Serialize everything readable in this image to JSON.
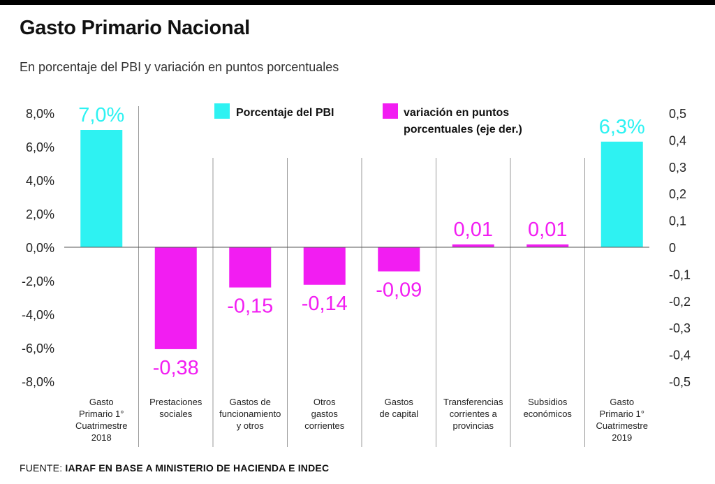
{
  "header": {
    "title": "Gasto Primario Nacional",
    "subtitle": "En porcentaje del PBI y variación en puntos porcentuales"
  },
  "footer": {
    "source_prefix": "FUENTE: ",
    "source_text": "IARAF EN BASE A MINISTERIO DE HACIENDA E INDEC"
  },
  "colors": {
    "pbi": "#2ef2f2",
    "variation": "#f21df2",
    "pbi_label": "#2ef2f2",
    "variation_label": "#f21df2"
  },
  "chart_data": {
    "type": "bar",
    "title": "Gasto Primario Nacional",
    "subtitle": "En porcentaje del PBI y variación en puntos porcentuales",
    "left_axis": {
      "range": [
        -8,
        8
      ],
      "ticks": [
        "8,0%",
        "6,0%",
        "4,0%",
        "2,0%",
        "0,0%",
        "-2,0%",
        "-4,0%",
        "-6,0%",
        "-8,0%"
      ]
    },
    "right_axis": {
      "range": [
        -0.5,
        0.5
      ],
      "ticks": [
        "0,5",
        "0,4",
        "0,3",
        "0,2",
        "0,1",
        "0",
        "-0,1",
        "-0,2",
        "-0,3",
        "-0,4",
        "-0,5"
      ]
    },
    "legend": {
      "position": "top-center",
      "entries": [
        "Porcentaje del PBI",
        "variación en puntos",
        "porcentuales (eje der.)"
      ]
    },
    "categories": [
      [
        "Gasto",
        "Primario 1°",
        "Cuatrimestre",
        "2018"
      ],
      [
        "Prestaciones",
        "sociales"
      ],
      [
        "Gastos de",
        "funcionamiento",
        "y otros"
      ],
      [
        "Otros",
        "gastos",
        "corrientes"
      ],
      [
        "Gastos",
        "de capital"
      ],
      [
        "Transferencias",
        "corrientes a",
        "provincias"
      ],
      [
        "Subsidios",
        "económicos"
      ],
      [
        "Gasto",
        "Primario 1°",
        "Cuatrimestre",
        "2019"
      ]
    ],
    "bars": [
      {
        "series": "pbi",
        "axis": "left",
        "value": 7.0,
        "label": "7,0%"
      },
      {
        "series": "variation",
        "axis": "right",
        "value": -0.38,
        "label": "-0,38"
      },
      {
        "series": "variation",
        "axis": "right",
        "value": -0.15,
        "label": "-0,15"
      },
      {
        "series": "variation",
        "axis": "right",
        "value": -0.14,
        "label": "-0,14"
      },
      {
        "series": "variation",
        "axis": "right",
        "value": -0.09,
        "label": "-0,09"
      },
      {
        "series": "variation",
        "axis": "right",
        "value": 0.01,
        "label": "0,01"
      },
      {
        "series": "variation",
        "axis": "right",
        "value": 0.01,
        "label": "0,01"
      },
      {
        "series": "pbi",
        "axis": "left",
        "value": 6.3,
        "label": "6,3%"
      }
    ]
  }
}
